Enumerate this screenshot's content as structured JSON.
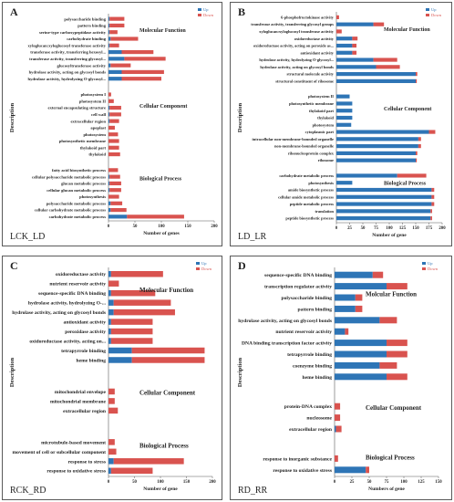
{
  "colors": {
    "up": "#2e75b6",
    "down": "#d9534f",
    "axis": "#595959",
    "text": "#222222"
  },
  "legend": {
    "up": "Up",
    "down": "Down"
  },
  "chart_data": [
    {
      "type": "bar",
      "orientation": "horizontal",
      "stacked": true,
      "panel_letter": "A",
      "caption": "LCK_LD",
      "xlabel": "Number of genes",
      "ylabel": "Description",
      "xlim": [
        0,
        200
      ],
      "xticks": [
        0,
        50,
        100,
        150,
        200
      ],
      "legend_position": "top-right",
      "groups": [
        {
          "title": "Molecular Function",
          "items": [
            {
              "label": "polysaccharide binding",
              "up": 2,
              "down": 28
            },
            {
              "label": "pattern binding",
              "up": 2,
              "down": 28
            },
            {
              "label": "serine-type carboxypeptidase activity",
              "up": 2,
              "down": 15
            },
            {
              "label": "carbohydrate binding",
              "up": 4,
              "down": 52
            },
            {
              "label": "xyloglucan:xyloglucosyl transferase activity",
              "up": 2,
              "down": 18
            },
            {
              "label": "transferase activity, transferring hexosyl...",
              "up": 25,
              "down": 60
            },
            {
              "label": "transferase activity, transferring glycosyl...",
              "up": 30,
              "down": 78
            },
            {
              "label": "glucosyltransferase activity",
              "up": 4,
              "down": 38
            },
            {
              "label": "hydrolase activity, acting on glycosyl bonds",
              "up": 25,
              "down": 80
            },
            {
              "label": "hydrolase activity, hydrolyzing O-glycosyl...",
              "up": 25,
              "down": 75
            }
          ]
        },
        {
          "title": "Cellular Component",
          "items": [
            {
              "label": "photosystem I",
              "up": 0,
              "down": 5
            },
            {
              "label": "photosystem II",
              "up": 0,
              "down": 10
            },
            {
              "label": "external encapsulating structure",
              "up": 2,
              "down": 22
            },
            {
              "label": "cell wall",
              "up": 2,
              "down": 22
            },
            {
              "label": "extracellular region",
              "up": 2,
              "down": 18
            },
            {
              "label": "apoplast",
              "up": 0,
              "down": 12
            },
            {
              "label": "photosystem",
              "up": 0,
              "down": 18
            },
            {
              "label": "photosynthetic membrane",
              "up": 0,
              "down": 20
            },
            {
              "label": "thylakoid part",
              "up": 0,
              "down": 20
            },
            {
              "label": "thylakoid",
              "up": 0,
              "down": 22
            }
          ]
        },
        {
          "title": "Biological Process",
          "items": [
            {
              "label": "fatty acid biosynthetic process",
              "up": 0,
              "down": 18
            },
            {
              "label": "cellular polysaccharide metabolic process",
              "up": 2,
              "down": 20
            },
            {
              "label": "glucan metabolic process",
              "up": 2,
              "down": 22
            },
            {
              "label": "cellular glucan metabolic process",
              "up": 2,
              "down": 22
            },
            {
              "label": "photosynthesis",
              "up": 0,
              "down": 20
            },
            {
              "label": "polysaccharide metabolic process",
              "up": 4,
              "down": 22
            },
            {
              "label": "cellular carbohydrate metabolic process",
              "up": 4,
              "down": 30
            },
            {
              "label": "carbohydrate metabolic process",
              "up": 35,
              "down": 108
            }
          ]
        }
      ]
    },
    {
      "type": "bar",
      "orientation": "horizontal",
      "stacked": true,
      "panel_letter": "B",
      "caption": "LD_LR",
      "xlabel": "Number of gene",
      "ylabel": "Description",
      "xlim": [
        0,
        200
      ],
      "xticks": [
        0,
        25,
        50,
        75,
        100,
        125,
        150,
        175,
        200
      ],
      "legend_position": "top-right",
      "groups": [
        {
          "title": "Molecular Function",
          "items": [
            {
              "label": "6-phosphofructokinase activity",
              "up": 0,
              "down": 5
            },
            {
              "label": "transferase activity, transferring glycosyl groups",
              "up": 70,
              "down": 20
            },
            {
              "label": "xyloglucan:xyloglucosyl transferase activity",
              "up": 0,
              "down": 10
            },
            {
              "label": "oxidoreductase activity",
              "up": 30,
              "down": 10
            },
            {
              "label": "oxidoreductase activity, acting on peroxide as...",
              "up": 30,
              "down": 8
            },
            {
              "label": "antioxidant activity",
              "up": 30,
              "down": 8
            },
            {
              "label": "hydrolase activity, hydrolyzing O-glycosyl...",
              "up": 70,
              "down": 45
            },
            {
              "label": "hydrolase activity, acting on glycosyl bonds",
              "up": 75,
              "down": 45
            },
            {
              "label": "structural molecule activity",
              "up": 150,
              "down": 3
            },
            {
              "label": "structural constituent of ribosome",
              "up": 150,
              "down": 2
            }
          ]
        },
        {
          "title": "Cellular Component",
          "items": [
            {
              "label": "photosystem II",
              "up": 25,
              "down": 0
            },
            {
              "label": "photosynthetic membrane",
              "up": 30,
              "down": 0
            },
            {
              "label": "thylakoid part",
              "up": 30,
              "down": 0
            },
            {
              "label": "thylakoid",
              "up": 30,
              "down": 0
            },
            {
              "label": "photosystem",
              "up": 28,
              "down": 0
            },
            {
              "label": "cytoplasmic part",
              "up": 175,
              "down": 12
            },
            {
              "label": "intracellular non-membrane-bounded organelle",
              "up": 155,
              "down": 5
            },
            {
              "label": "non-membrane-bounded organelle",
              "up": 155,
              "down": 5
            },
            {
              "label": "ribonucleoprotein complex",
              "up": 150,
              "down": 3
            },
            {
              "label": "ribosome",
              "up": 150,
              "down": 2
            }
          ]
        },
        {
          "title": "Biological Process",
          "items": [
            {
              "label": "carbohydrate metabolic process",
              "up": 115,
              "down": 55
            },
            {
              "label": "photosynthesis",
              "up": 30,
              "down": 0
            },
            {
              "label": "amide biosynthetic process",
              "up": 180,
              "down": 5
            },
            {
              "label": "cellular amide metabolic process",
              "up": 180,
              "down": 5
            },
            {
              "label": "peptide metabolic process",
              "up": 180,
              "down": 5
            },
            {
              "label": "translation",
              "up": 178,
              "down": 3
            },
            {
              "label": "peptide biosynthetic process",
              "up": 178,
              "down": 3
            }
          ]
        }
      ]
    },
    {
      "type": "bar",
      "orientation": "horizontal",
      "stacked": true,
      "panel_letter": "C",
      "caption": "RCK_RD",
      "xlabel": "Number of gene",
      "ylabel": "Description",
      "xlim": [
        0,
        200
      ],
      "xticks": [
        0,
        50,
        100,
        150,
        200
      ],
      "legend_position": "top-right",
      "groups": [
        {
          "title": "Molecular Function",
          "items": [
            {
              "label": "oxidoreductase activity",
              "up": 5,
              "down": 100
            },
            {
              "label": "nutrient reservoir activity",
              "up": 0,
              "down": 20
            },
            {
              "label": "sequence-specific DNA binding",
              "up": 5,
              "down": 85
            },
            {
              "label": "hydrolase activity, hydrolyzing O-...",
              "up": 10,
              "down": 110
            },
            {
              "label": "hydrolase activity, acting on glycosyl bonds",
              "up": 10,
              "down": 118
            },
            {
              "label": "antioxidant activity",
              "up": 5,
              "down": 80
            },
            {
              "label": "peroxidase activity",
              "up": 5,
              "down": 80
            },
            {
              "label": "oxidoreductase activity, acting on...",
              "up": 5,
              "down": 80
            },
            {
              "label": "tetrapyrrole binding",
              "up": 45,
              "down": 140
            },
            {
              "label": "heme binding",
              "up": 45,
              "down": 140
            }
          ]
        },
        {
          "title": "Cellular Component",
          "items": [
            {
              "label": "mitochondrial envelope",
              "up": 0,
              "down": 12
            },
            {
              "label": "mitochondrial membrane",
              "up": 0,
              "down": 12
            },
            {
              "label": "extracellular region",
              "up": 0,
              "down": 18
            }
          ]
        },
        {
          "title": "Biological Process",
          "items": [
            {
              "label": "microtubule-based movement",
              "up": 0,
              "down": 12
            },
            {
              "label": "movement of cell or subcellular component",
              "up": 0,
              "down": 15
            },
            {
              "label": "response to stress",
              "up": 10,
              "down": 135
            },
            {
              "label": "response to oxidative stress",
              "up": 5,
              "down": 80
            }
          ]
        }
      ]
    },
    {
      "type": "bar",
      "orientation": "horizontal",
      "stacked": true,
      "panel_letter": "D",
      "caption": "RD_RR",
      "xlabel": "Numbers of gene",
      "ylabel": "Description",
      "xlim": [
        0,
        150
      ],
      "xticks": [
        0,
        25,
        50,
        75,
        100,
        125,
        150
      ],
      "legend_position": "top-right",
      "groups": [
        {
          "title": "Molcular Function",
          "items": [
            {
              "label": "sequence-specific DNA binding",
              "up": 55,
              "down": 15
            },
            {
              "label": "transcription regulator activity",
              "up": 75,
              "down": 30
            },
            {
              "label": "polysaccharide binding",
              "up": 30,
              "down": 10
            },
            {
              "label": "pattern binding",
              "up": 30,
              "down": 10
            },
            {
              "label": "hydrolase activity, acting on glycosyl bonds",
              "up": 65,
              "down": 25
            },
            {
              "label": "nutrient reservoir activity",
              "up": 15,
              "down": 5
            },
            {
              "label": "DNA binding transcription factor activity",
              "up": 75,
              "down": 30
            },
            {
              "label": "tetrapyrrole binding",
              "up": 75,
              "down": 30
            },
            {
              "label": "coenzyme binding",
              "up": 65,
              "down": 25
            },
            {
              "label": "heme binding",
              "up": 75,
              "down": 30
            }
          ]
        },
        {
          "title": "Cellular Component",
          "items": [
            {
              "label": "protein-DNA complex",
              "up": 0,
              "down": 8
            },
            {
              "label": "nucleosome",
              "up": 0,
              "down": 8
            },
            {
              "label": "extracellular region",
              "up": 2,
              "down": 8
            }
          ]
        },
        {
          "title": "Biological Process",
          "items": [
            {
              "label": "response to inorganic substance",
              "up": 0,
              "down": 5
            },
            {
              "label": "response to oxidative stress",
              "up": 45,
              "down": 5
            }
          ]
        }
      ]
    }
  ]
}
